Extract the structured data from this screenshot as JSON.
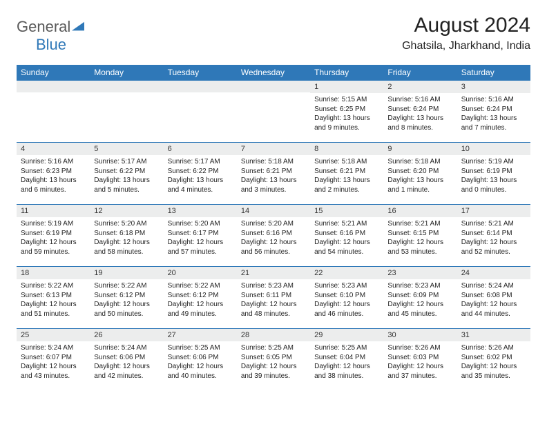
{
  "logo": {
    "text1": "General",
    "text2": "Blue",
    "color1": "#5a5a5a",
    "color2": "#2f78b8"
  },
  "title": "August 2024",
  "location": "Ghatsila, Jharkhand, India",
  "colors": {
    "header_bg": "#2f78b8",
    "header_fg": "#ffffff",
    "daynum_bg": "#eceded",
    "border": "#2f78b8",
    "text": "#222222",
    "background": "#ffffff"
  },
  "day_headers": [
    "Sunday",
    "Monday",
    "Tuesday",
    "Wednesday",
    "Thursday",
    "Friday",
    "Saturday"
  ],
  "weeks": [
    [
      null,
      null,
      null,
      null,
      {
        "n": "1",
        "sr": "5:15 AM",
        "ss": "6:25 PM",
        "dl": "13 hours and 9 minutes."
      },
      {
        "n": "2",
        "sr": "5:16 AM",
        "ss": "6:24 PM",
        "dl": "13 hours and 8 minutes."
      },
      {
        "n": "3",
        "sr": "5:16 AM",
        "ss": "6:24 PM",
        "dl": "13 hours and 7 minutes."
      }
    ],
    [
      {
        "n": "4",
        "sr": "5:16 AM",
        "ss": "6:23 PM",
        "dl": "13 hours and 6 minutes."
      },
      {
        "n": "5",
        "sr": "5:17 AM",
        "ss": "6:22 PM",
        "dl": "13 hours and 5 minutes."
      },
      {
        "n": "6",
        "sr": "5:17 AM",
        "ss": "6:22 PM",
        "dl": "13 hours and 4 minutes."
      },
      {
        "n": "7",
        "sr": "5:18 AM",
        "ss": "6:21 PM",
        "dl": "13 hours and 3 minutes."
      },
      {
        "n": "8",
        "sr": "5:18 AM",
        "ss": "6:21 PM",
        "dl": "13 hours and 2 minutes."
      },
      {
        "n": "9",
        "sr": "5:18 AM",
        "ss": "6:20 PM",
        "dl": "13 hours and 1 minute."
      },
      {
        "n": "10",
        "sr": "5:19 AM",
        "ss": "6:19 PM",
        "dl": "13 hours and 0 minutes."
      }
    ],
    [
      {
        "n": "11",
        "sr": "5:19 AM",
        "ss": "6:19 PM",
        "dl": "12 hours and 59 minutes."
      },
      {
        "n": "12",
        "sr": "5:20 AM",
        "ss": "6:18 PM",
        "dl": "12 hours and 58 minutes."
      },
      {
        "n": "13",
        "sr": "5:20 AM",
        "ss": "6:17 PM",
        "dl": "12 hours and 57 minutes."
      },
      {
        "n": "14",
        "sr": "5:20 AM",
        "ss": "6:16 PM",
        "dl": "12 hours and 56 minutes."
      },
      {
        "n": "15",
        "sr": "5:21 AM",
        "ss": "6:16 PM",
        "dl": "12 hours and 54 minutes."
      },
      {
        "n": "16",
        "sr": "5:21 AM",
        "ss": "6:15 PM",
        "dl": "12 hours and 53 minutes."
      },
      {
        "n": "17",
        "sr": "5:21 AM",
        "ss": "6:14 PM",
        "dl": "12 hours and 52 minutes."
      }
    ],
    [
      {
        "n": "18",
        "sr": "5:22 AM",
        "ss": "6:13 PM",
        "dl": "12 hours and 51 minutes."
      },
      {
        "n": "19",
        "sr": "5:22 AM",
        "ss": "6:12 PM",
        "dl": "12 hours and 50 minutes."
      },
      {
        "n": "20",
        "sr": "5:22 AM",
        "ss": "6:12 PM",
        "dl": "12 hours and 49 minutes."
      },
      {
        "n": "21",
        "sr": "5:23 AM",
        "ss": "6:11 PM",
        "dl": "12 hours and 48 minutes."
      },
      {
        "n": "22",
        "sr": "5:23 AM",
        "ss": "6:10 PM",
        "dl": "12 hours and 46 minutes."
      },
      {
        "n": "23",
        "sr": "5:23 AM",
        "ss": "6:09 PM",
        "dl": "12 hours and 45 minutes."
      },
      {
        "n": "24",
        "sr": "5:24 AM",
        "ss": "6:08 PM",
        "dl": "12 hours and 44 minutes."
      }
    ],
    [
      {
        "n": "25",
        "sr": "5:24 AM",
        "ss": "6:07 PM",
        "dl": "12 hours and 43 minutes."
      },
      {
        "n": "26",
        "sr": "5:24 AM",
        "ss": "6:06 PM",
        "dl": "12 hours and 42 minutes."
      },
      {
        "n": "27",
        "sr": "5:25 AM",
        "ss": "6:06 PM",
        "dl": "12 hours and 40 minutes."
      },
      {
        "n": "28",
        "sr": "5:25 AM",
        "ss": "6:05 PM",
        "dl": "12 hours and 39 minutes."
      },
      {
        "n": "29",
        "sr": "5:25 AM",
        "ss": "6:04 PM",
        "dl": "12 hours and 38 minutes."
      },
      {
        "n": "30",
        "sr": "5:26 AM",
        "ss": "6:03 PM",
        "dl": "12 hours and 37 minutes."
      },
      {
        "n": "31",
        "sr": "5:26 AM",
        "ss": "6:02 PM",
        "dl": "12 hours and 35 minutes."
      }
    ]
  ],
  "labels": {
    "sunrise": "Sunrise:",
    "sunset": "Sunset:",
    "daylight": "Daylight:"
  }
}
